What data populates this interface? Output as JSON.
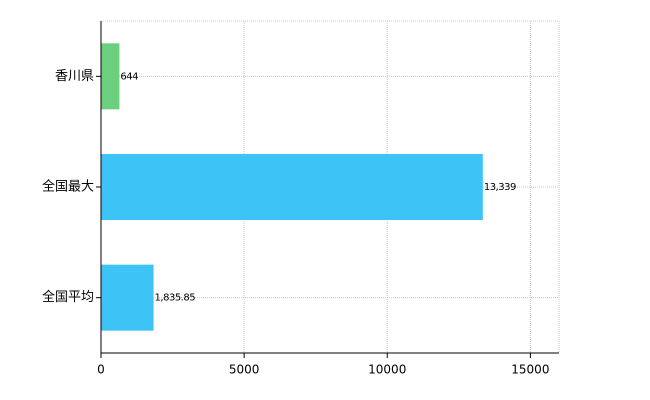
{
  "chart_data": {
    "type": "hbar",
    "categories": [
      "香川県",
      "全国最大",
      "全国平均"
    ],
    "values": [
      644,
      13339,
      1835.85
    ],
    "value_labels": [
      "644",
      "13,339",
      "1,835.85"
    ],
    "colors": [
      "#6ccf7d",
      "#3ec3f7",
      "#3ec3f7"
    ],
    "xlim": [
      0,
      16000
    ],
    "xticks": [
      0,
      5000,
      10000,
      15000
    ],
    "grid": true
  }
}
